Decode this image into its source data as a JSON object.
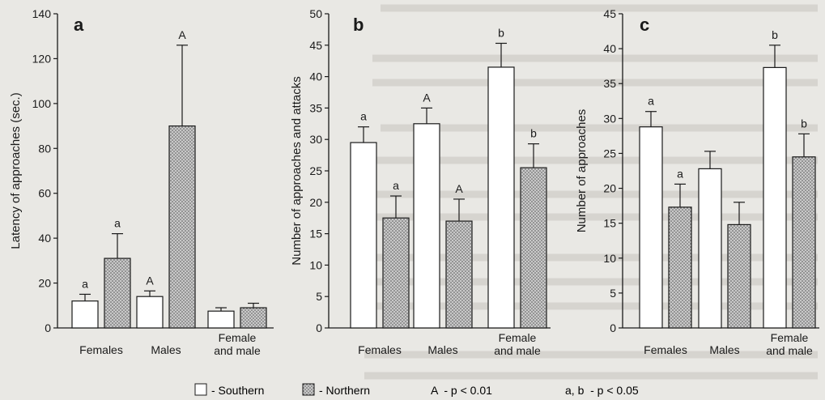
{
  "colors": {
    "southern": "#ffffff",
    "northern_base": "#c9c9c9",
    "northern_dots": "#555555",
    "ink": "#1a1a1a"
  },
  "chart_data": [
    {
      "type": "bar",
      "panel": "a",
      "ylabel": "Latency of approaches (sec.)",
      "ylim": [
        0,
        140
      ],
      "yticks": [
        0,
        20,
        40,
        60,
        80,
        100,
        120,
        140
      ],
      "categories": [
        "Females",
        "Males",
        "Female\nand male"
      ],
      "series": [
        {
          "name": "Southern",
          "values": [
            12,
            14,
            7.5
          ],
          "errors": [
            3,
            2.5,
            1.5
          ]
        },
        {
          "name": "Northern",
          "values": [
            31,
            90,
            9
          ],
          "errors": [
            11,
            36,
            2
          ]
        }
      ],
      "annotations": [
        {
          "series": 0,
          "category": 0,
          "text": "a"
        },
        {
          "series": 1,
          "category": 0,
          "text": "a"
        },
        {
          "series": 0,
          "category": 1,
          "text": "A"
        },
        {
          "series": 1,
          "category": 1,
          "text": "A"
        }
      ]
    },
    {
      "type": "bar",
      "panel": "b",
      "ylabel": "Number of approaches and attacks",
      "ylim": [
        0,
        50
      ],
      "yticks": [
        0,
        5,
        10,
        15,
        20,
        25,
        30,
        35,
        40,
        45,
        50
      ],
      "categories": [
        "Females",
        "Males",
        "Female\nand male"
      ],
      "series": [
        {
          "name": "Southern",
          "values": [
            29.5,
            32.5,
            41.5
          ],
          "errors": [
            2.5,
            2.5,
            3.8
          ]
        },
        {
          "name": "Northern",
          "values": [
            17.5,
            17,
            25.5
          ],
          "errors": [
            3.5,
            3.5,
            3.8
          ]
        }
      ],
      "annotations": [
        {
          "series": 0,
          "category": 0,
          "text": "a"
        },
        {
          "series": 1,
          "category": 0,
          "text": "a"
        },
        {
          "series": 0,
          "category": 1,
          "text": "A"
        },
        {
          "series": 1,
          "category": 1,
          "text": "A"
        },
        {
          "series": 0,
          "category": 2,
          "text": "b"
        },
        {
          "series": 1,
          "category": 2,
          "text": "b"
        }
      ]
    },
    {
      "type": "bar",
      "panel": "c",
      "ylabel": "Number of approaches",
      "ylim": [
        0,
        45
      ],
      "yticks": [
        0,
        5,
        10,
        15,
        20,
        25,
        30,
        35,
        40,
        45
      ],
      "categories": [
        "Females",
        "Males",
        "Female\nand male"
      ],
      "series": [
        {
          "name": "Southern",
          "values": [
            28.8,
            22.8,
            37.3
          ],
          "errors": [
            2.2,
            2.5,
            3.2
          ]
        },
        {
          "name": "Northern",
          "values": [
            17.3,
            14.8,
            24.5
          ],
          "errors": [
            3.3,
            3.2,
            3.3
          ]
        }
      ],
      "annotations": [
        {
          "series": 0,
          "category": 0,
          "text": "a"
        },
        {
          "series": 1,
          "category": 0,
          "text": "a"
        },
        {
          "series": 0,
          "category": 2,
          "text": "b"
        },
        {
          "series": 1,
          "category": 2,
          "text": "b"
        }
      ]
    }
  ],
  "legend": {
    "southern_label": "- Southern",
    "northern_label": "- Northern",
    "sig_upper": "A  - p < 0.01",
    "sig_lower": "a, b  - p < 0.05"
  }
}
